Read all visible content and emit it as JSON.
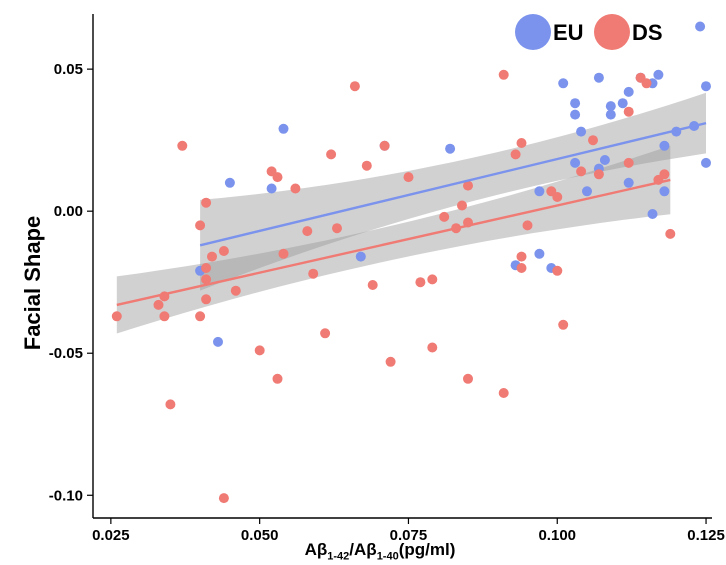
{
  "chart_data": {
    "type": "scatter",
    "ylabel": "Facial Shape",
    "xlabel_parts": {
      "a": "Aβ",
      "a_sub": "1-42",
      "slash": "/Aβ",
      "b_sub": "1-40",
      "unit": "(pg/ml)"
    },
    "xlim": [
      0.022,
      0.126
    ],
    "ylim": [
      -0.108,
      0.068
    ],
    "x_ticks": [
      0.025,
      0.05,
      0.075,
      0.1,
      0.125
    ],
    "x_tick_labels": [
      "0.025",
      "0.050",
      "0.075",
      "0.100",
      "0.125"
    ],
    "y_ticks": [
      0.05,
      0.0,
      -0.05,
      -0.1
    ],
    "y_tick_labels": [
      "0.05",
      "0.00",
      "-0.05",
      "-0.10"
    ],
    "grid": false,
    "legend_position": "top-right",
    "series": [
      {
        "name": "EU",
        "color": "#7b93ec",
        "points": [
          [
            0.04,
            -0.021
          ],
          [
            0.043,
            -0.046
          ],
          [
            0.045,
            0.01
          ],
          [
            0.052,
            0.008
          ],
          [
            0.054,
            0.029
          ],
          [
            0.067,
            -0.016
          ],
          [
            0.071,
            0.023
          ],
          [
            0.082,
            0.022
          ],
          [
            0.093,
            -0.019
          ],
          [
            0.097,
            0.007
          ],
          [
            0.097,
            -0.015
          ],
          [
            0.099,
            -0.02
          ],
          [
            0.101,
            0.045
          ],
          [
            0.103,
            0.017
          ],
          [
            0.103,
            0.034
          ],
          [
            0.103,
            0.038
          ],
          [
            0.104,
            0.028
          ],
          [
            0.105,
            0.007
          ],
          [
            0.107,
            0.015
          ],
          [
            0.107,
            0.047
          ],
          [
            0.108,
            0.018
          ],
          [
            0.109,
            0.037
          ],
          [
            0.109,
            0.034
          ],
          [
            0.111,
            0.038
          ],
          [
            0.112,
            0.01
          ],
          [
            0.112,
            0.042
          ],
          [
            0.114,
            0.047
          ],
          [
            0.116,
            0.045
          ],
          [
            0.116,
            -0.001
          ],
          [
            0.117,
            0.048
          ],
          [
            0.118,
            0.007
          ],
          [
            0.118,
            0.023
          ],
          [
            0.12,
            0.028
          ],
          [
            0.123,
            0.03
          ],
          [
            0.124,
            0.065
          ],
          [
            0.125,
            0.017
          ],
          [
            0.125,
            0.044
          ]
        ],
        "fit": {
          "x": [
            0.04,
            0.125
          ],
          "y": [
            -0.012,
            0.031
          ]
        }
      },
      {
        "name": "DS",
        "color": "#f07a74",
        "points": [
          [
            0.026,
            -0.037
          ],
          [
            0.033,
            -0.033
          ],
          [
            0.034,
            -0.03
          ],
          [
            0.034,
            -0.037
          ],
          [
            0.035,
            -0.068
          ],
          [
            0.037,
            0.023
          ],
          [
            0.04,
            -0.005
          ],
          [
            0.04,
            -0.037
          ],
          [
            0.041,
            0.003
          ],
          [
            0.041,
            -0.02
          ],
          [
            0.041,
            -0.031
          ],
          [
            0.041,
            -0.024
          ],
          [
            0.042,
            -0.016
          ],
          [
            0.044,
            -0.014
          ],
          [
            0.044,
            -0.101
          ],
          [
            0.046,
            -0.028
          ],
          [
            0.05,
            -0.049
          ],
          [
            0.052,
            0.014
          ],
          [
            0.053,
            0.012
          ],
          [
            0.053,
            -0.059
          ],
          [
            0.054,
            -0.015
          ],
          [
            0.056,
            0.008
          ],
          [
            0.058,
            -0.007
          ],
          [
            0.059,
            -0.022
          ],
          [
            0.061,
            -0.043
          ],
          [
            0.062,
            0.02
          ],
          [
            0.063,
            -0.006
          ],
          [
            0.066,
            0.044
          ],
          [
            0.068,
            0.016
          ],
          [
            0.069,
            -0.026
          ],
          [
            0.071,
            0.023
          ],
          [
            0.072,
            -0.053
          ],
          [
            0.075,
            0.012
          ],
          [
            0.077,
            -0.025
          ],
          [
            0.079,
            -0.024
          ],
          [
            0.079,
            -0.048
          ],
          [
            0.081,
            -0.002
          ],
          [
            0.083,
            -0.006
          ],
          [
            0.084,
            0.002
          ],
          [
            0.085,
            0.009
          ],
          [
            0.085,
            -0.004
          ],
          [
            0.085,
            -0.059
          ],
          [
            0.091,
            -0.064
          ],
          [
            0.091,
            0.048
          ],
          [
            0.093,
            0.02
          ],
          [
            0.094,
            0.024
          ],
          [
            0.094,
            -0.016
          ],
          [
            0.094,
            -0.02
          ],
          [
            0.095,
            -0.005
          ],
          [
            0.099,
            0.007
          ],
          [
            0.1,
            0.005
          ],
          [
            0.1,
            -0.021
          ],
          [
            0.101,
            -0.04
          ],
          [
            0.104,
            0.014
          ],
          [
            0.106,
            0.025
          ],
          [
            0.107,
            0.013
          ],
          [
            0.112,
            0.017
          ],
          [
            0.112,
            0.035
          ],
          [
            0.114,
            0.047
          ],
          [
            0.115,
            0.045
          ],
          [
            0.117,
            0.011
          ],
          [
            0.118,
            0.013
          ],
          [
            0.119,
            -0.008
          ]
        ],
        "fit": {
          "x": [
            0.026,
            0.119
          ],
          "y": [
            -0.033,
            0.011
          ]
        }
      }
    ]
  }
}
